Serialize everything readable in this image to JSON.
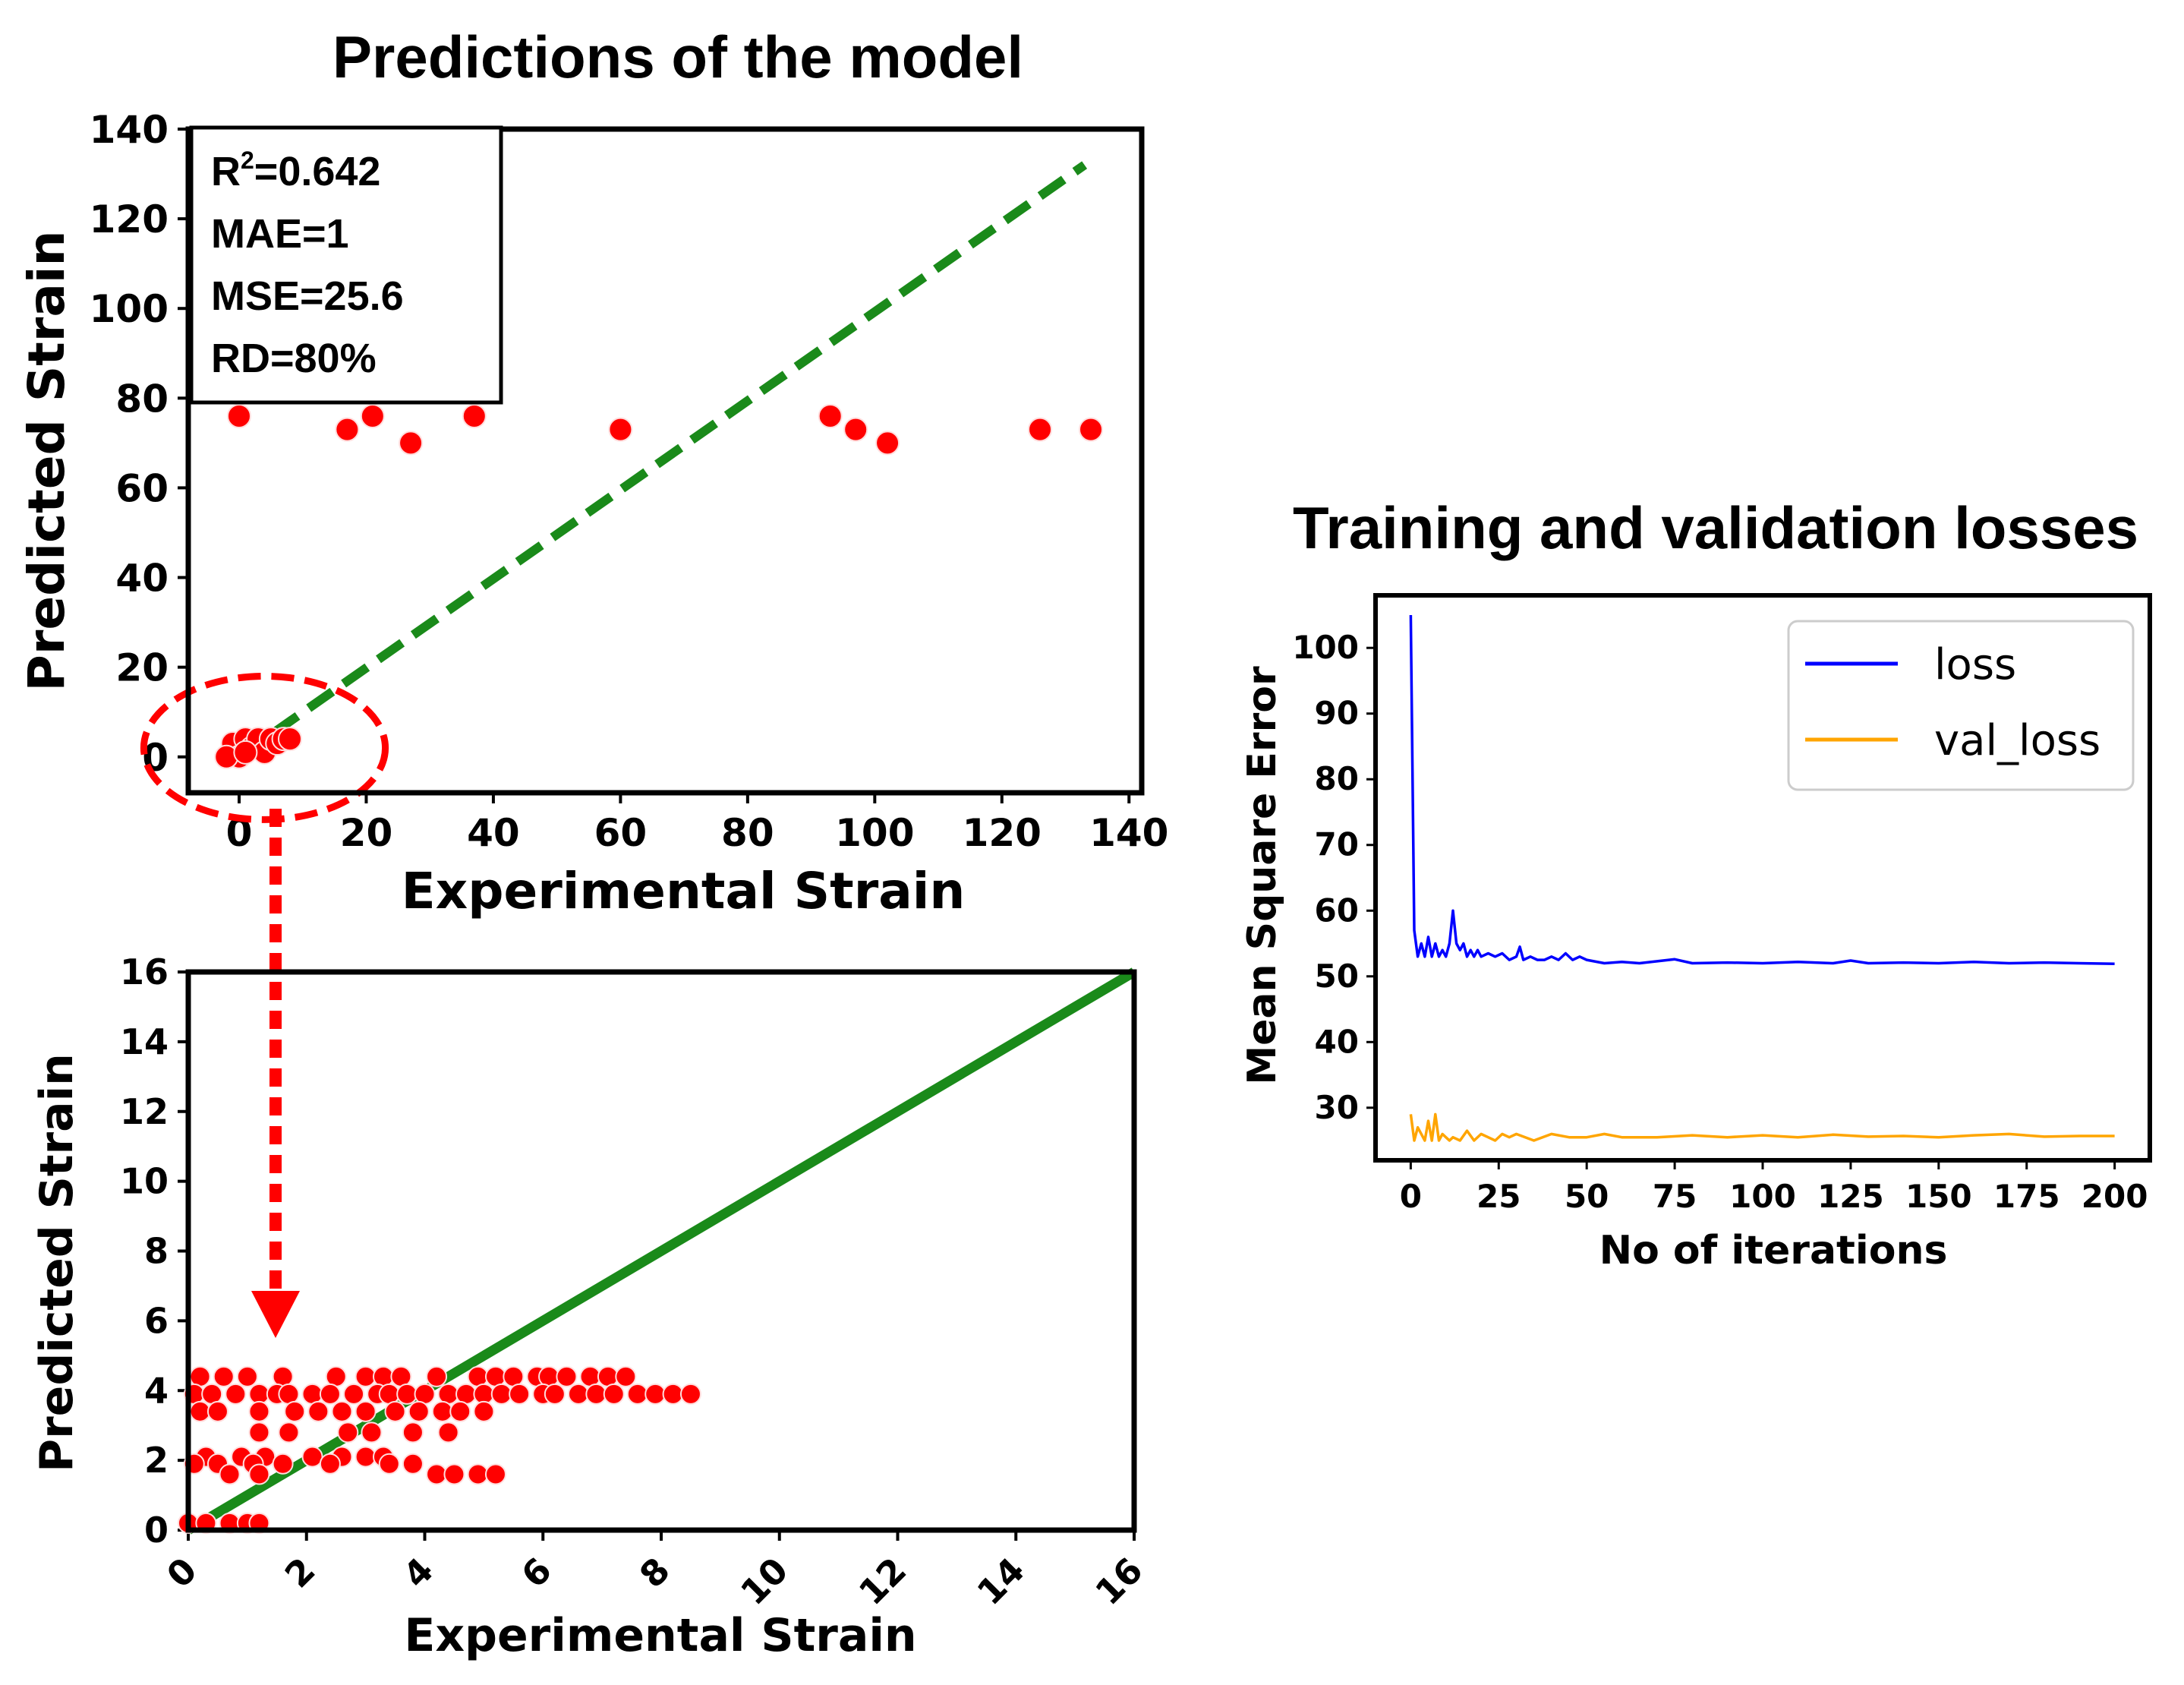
{
  "chart_data": [
    {
      "id": "predictions",
      "type": "scatter",
      "title": "Predictions of the model",
      "xlabel": "Experimental Strain",
      "ylabel": "Predicted Strain",
      "xlim": [
        -8,
        142
      ],
      "ylim": [
        -8,
        140
      ],
      "xticks": [
        0,
        20,
        40,
        60,
        80,
        100,
        120,
        140
      ],
      "yticks": [
        0,
        20,
        40,
        60,
        80,
        100,
        120,
        140
      ],
      "metrics": [
        "=0.642",
        "MAE=1",
        "MSE=25.6",
        "RD=80%"
      ],
      "metric_r_prefix": "R",
      "metric_r_sup": "2",
      "marker_color": "#ff0000",
      "line_color": "#1a8a1a",
      "highlight_color": "#ff0000",
      "identity_line": {
        "x": [
          0,
          133
        ],
        "y": [
          0,
          132
        ],
        "style": "dashed"
      },
      "points": [
        {
          "x": 0,
          "y": 76
        },
        {
          "x": 17,
          "y": 73
        },
        {
          "x": 21,
          "y": 76
        },
        {
          "x": 27,
          "y": 70
        },
        {
          "x": 37,
          "y": 76
        },
        {
          "x": 60,
          "y": 73
        },
        {
          "x": 93,
          "y": 76
        },
        {
          "x": 97,
          "y": 73
        },
        {
          "x": 102,
          "y": 70
        },
        {
          "x": 126,
          "y": 73
        },
        {
          "x": 134,
          "y": 73
        },
        {
          "x": -1,
          "y": 3
        },
        {
          "x": 0,
          "y": 0
        },
        {
          "x": 1,
          "y": 4
        },
        {
          "x": 2,
          "y": 2
        },
        {
          "x": 3,
          "y": 4
        },
        {
          "x": 4,
          "y": 1
        },
        {
          "x": 5,
          "y": 4
        },
        {
          "x": 6,
          "y": 3
        },
        {
          "x": 7,
          "y": 4
        },
        {
          "x": 8,
          "y": 4
        },
        {
          "x": -2,
          "y": 0
        },
        {
          "x": 1,
          "y": 1
        }
      ],
      "highlight_ellipse": {
        "cx": 4,
        "cy": 2,
        "rx": 19,
        "ry": 16
      }
    },
    {
      "id": "zoom",
      "type": "scatter",
      "title": "",
      "xlabel": "Experimental Strain",
      "ylabel": "Predicted Strain",
      "xlim": [
        0,
        16
      ],
      "ylim": [
        0,
        16
      ],
      "xticks": [
        0,
        2,
        4,
        6,
        8,
        10,
        12,
        14,
        16
      ],
      "yticks": [
        0,
        2,
        4,
        6,
        8,
        10,
        12,
        14,
        16
      ],
      "marker_color": "#ff0000",
      "line_color": "#1a8a1a",
      "identity_line": {
        "x": [
          0,
          16
        ],
        "y": [
          0,
          16
        ],
        "style": "solid"
      },
      "rows": [
        {
          "y": 4.4,
          "xs": [
            0.2,
            0.6,
            1.0,
            1.6,
            2.5,
            3.0,
            3.3,
            3.6,
            4.2,
            4.9,
            5.2,
            5.5,
            5.9,
            6.1,
            6.4,
            6.8,
            7.1,
            7.4
          ]
        },
        {
          "y": 3.9,
          "xs": [
            0.1,
            0.4,
            0.8,
            1.2,
            1.5,
            1.7,
            2.1,
            2.4,
            2.8,
            3.2,
            3.4,
            3.7,
            4.0,
            4.4,
            4.7,
            5.0,
            5.3,
            5.6,
            6.0,
            6.2,
            6.6,
            6.9,
            7.2,
            7.6,
            7.9,
            8.2,
            8.5
          ]
        },
        {
          "y": 3.4,
          "xs": [
            0.2,
            0.5,
            1.2,
            1.8,
            2.2,
            2.6,
            3.0,
            3.5,
            3.9,
            4.3,
            4.6,
            5.0
          ]
        },
        {
          "y": 2.8,
          "xs": [
            1.2,
            1.7,
            2.7,
            3.1,
            3.8,
            4.4
          ]
        },
        {
          "y": 2.1,
          "xs": [
            0.3,
            0.9,
            1.3,
            2.1,
            2.6,
            3.0,
            3.3
          ]
        },
        {
          "y": 1.9,
          "xs": [
            0.1,
            0.5,
            1.1,
            1.6,
            2.4,
            3.4,
            3.8
          ]
        },
        {
          "y": 1.6,
          "xs": [
            0.7,
            1.2,
            4.2,
            4.5,
            4.9,
            5.2
          ]
        },
        {
          "y": 0.2,
          "xs": [
            0.0,
            0.3,
            0.7,
            1.0,
            1.2
          ]
        }
      ]
    },
    {
      "id": "losses",
      "type": "line",
      "title": "Training and validation losses",
      "xlabel": "No of iterations",
      "ylabel": "Mean Square Error",
      "xlim": [
        -10,
        210
      ],
      "ylim": [
        22,
        108
      ],
      "xticks": [
        0,
        25,
        50,
        75,
        100,
        125,
        150,
        175,
        200
      ],
      "yticks": [
        30,
        40,
        50,
        60,
        70,
        80,
        90,
        100
      ],
      "legend_position": "top-right",
      "series": [
        {
          "name": "loss",
          "color": "#0000ff",
          "x": [
            0,
            1,
            2,
            3,
            4,
            5,
            6,
            7,
            8,
            9,
            10,
            11,
            12,
            13,
            14,
            15,
            16,
            17,
            18,
            19,
            20,
            22,
            24,
            26,
            28,
            30,
            31,
            32,
            34,
            36,
            38,
            40,
            42,
            44,
            46,
            48,
            50,
            55,
            60,
            65,
            70,
            75,
            80,
            90,
            100,
            110,
            120,
            125,
            130,
            140,
            150,
            160,
            170,
            180,
            190,
            200
          ],
          "y": [
            105,
            57,
            53,
            55,
            53,
            56,
            53,
            55,
            53,
            54,
            53,
            55,
            60,
            55,
            54,
            55,
            53,
            54,
            53,
            54,
            53,
            53.5,
            53,
            53.5,
            52.5,
            53,
            54.5,
            52.5,
            53,
            52.5,
            52.5,
            53,
            52.5,
            53.5,
            52.5,
            53,
            52.5,
            52,
            52.2,
            52,
            52.3,
            52.6,
            52,
            52.1,
            52,
            52.2,
            52,
            52.4,
            52,
            52.1,
            52,
            52.2,
            52,
            52.1,
            52,
            51.9
          ]
        },
        {
          "name": "val_loss",
          "color": "#ffa500",
          "x": [
            0,
            1,
            2,
            3,
            4,
            5,
            6,
            7,
            8,
            9,
            10,
            11,
            12,
            14,
            16,
            18,
            20,
            22,
            24,
            26,
            28,
            30,
            35,
            40,
            45,
            50,
            55,
            60,
            70,
            80,
            90,
            100,
            110,
            120,
            130,
            140,
            150,
            160,
            170,
            180,
            190,
            200
          ],
          "y": [
            29,
            25,
            27,
            26,
            25,
            28,
            25,
            29,
            25,
            26,
            25.5,
            25,
            25.5,
            25,
            26.5,
            25,
            26,
            25.5,
            25,
            26,
            25.5,
            26,
            25,
            26,
            25.5,
            25.5,
            26,
            25.5,
            25.5,
            25.8,
            25.5,
            25.8,
            25.5,
            25.9,
            25.6,
            25.7,
            25.5,
            25.8,
            26,
            25.6,
            25.7,
            25.7
          ]
        }
      ]
    }
  ]
}
